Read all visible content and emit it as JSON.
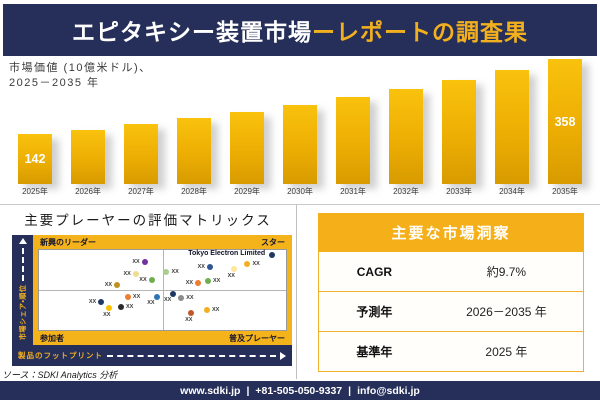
{
  "header": {
    "title_main": "エピタキシー装置市場",
    "title_accent": "ーレポートの調査果"
  },
  "bar_section": {
    "subtitle_line1": "市場価値 (10億米ドル)、",
    "subtitle_line2": "2025－2035 年"
  },
  "chart_data": [
    {
      "type": "bar",
      "title": "市場価値 (10億米ドル)、2025－2035 年",
      "categories": [
        "2025年",
        "2026年",
        "2027年",
        "2028年",
        "2029年",
        "2030年",
        "2031年",
        "2032年",
        "2033年",
        "2034年",
        "2035年"
      ],
      "values": [
        142,
        156,
        171,
        188,
        206,
        226,
        248,
        272,
        298,
        327,
        358
      ],
      "data_labels": [
        "142",
        "",
        "",
        "",
        "",
        "",
        "",
        "",
        "",
        "",
        "358"
      ],
      "ylim": [
        0,
        358
      ],
      "bar_color_top": "#F9C20D",
      "bar_color_bottom": "#D89B00",
      "grid": false,
      "legend": "none"
    },
    {
      "type": "scatter",
      "title": "主要プレーヤーの評価マトリックス",
      "xlabel": "製品のフットプリント",
      "ylabel": "市場シェア・順位",
      "quadrant_labels": {
        "top_left": "新興のリーダー",
        "top_right": "スター",
        "bottom_left": "参加者",
        "bottom_right": "普及プレーヤー"
      },
      "points": [
        {
          "x": 42.8,
          "y": 14.5,
          "c": "#7030A0",
          "label": "XX",
          "pos": "l"
        },
        {
          "x": 39.2,
          "y": 30.1,
          "c": "#EFDE8F",
          "label": "XX",
          "pos": "l"
        },
        {
          "x": 45.6,
          "y": 37.3,
          "c": "#6FAE4E",
          "label": "XX",
          "pos": "l"
        },
        {
          "x": 31.6,
          "y": 43.4,
          "c": "#BD9220",
          "label": "XX",
          "pos": "l"
        },
        {
          "x": 51.6,
          "y": 27.7,
          "c": "#A8CE8F",
          "label": "XX",
          "pos": "r"
        },
        {
          "x": 36.0,
          "y": 59.0,
          "c": "#ED7D31",
          "label": "XX",
          "pos": "r"
        },
        {
          "x": 47.6,
          "y": 59.0,
          "c": "#2E75B6",
          "label": "XX",
          "pos": "bl"
        },
        {
          "x": 25.2,
          "y": 65.1,
          "c": "#1F3864",
          "label": "XX",
          "pos": "l"
        },
        {
          "x": 33.2,
          "y": 71.1,
          "c": "#2b2b2b",
          "label": "XX",
          "pos": "r"
        },
        {
          "x": 28.4,
          "y": 72.3,
          "c": "#FFC000",
          "label": "XX",
          "pos": "b"
        },
        {
          "x": 94.4,
          "y": 6.0,
          "c": "#1F3864",
          "label": "Tokyo Electron Limited",
          "pos": "tel"
        },
        {
          "x": 84.4,
          "y": 16.9,
          "c": "#F2B01E",
          "label": "XX",
          "pos": "r"
        },
        {
          "x": 78.8,
          "y": 24.1,
          "c": "#FFE699",
          "label": "XX",
          "pos": "b"
        },
        {
          "x": 69.2,
          "y": 21.7,
          "c": "#2F5597",
          "label": "XX",
          "pos": "l"
        },
        {
          "x": 68.4,
          "y": 38.6,
          "c": "#6FAE4E",
          "label": "XX",
          "pos": "r"
        },
        {
          "x": 64.4,
          "y": 41.0,
          "c": "#ED7D31",
          "label": "XX",
          "pos": "l"
        },
        {
          "x": 54.4,
          "y": 55.4,
          "c": "#1F3864",
          "label": "XX",
          "pos": "bl"
        },
        {
          "x": 57.6,
          "y": 60.2,
          "c": "#8C8C8C",
          "label": "XX",
          "pos": "r"
        },
        {
          "x": 61.6,
          "y": 78.3,
          "c": "#C0572A",
          "label": "XX",
          "pos": "b"
        },
        {
          "x": 68.0,
          "y": 74.7,
          "c": "#F2B01E",
          "label": "XX",
          "pos": "r"
        }
      ]
    }
  ],
  "matrix": {
    "title": "主要プレーヤーの評価マトリックス",
    "y_axis_label": "市場シェア・順位",
    "x_axis_label": "製品のフットプリント",
    "quad_top_left": "新興のリーダー",
    "quad_top_right": "スター",
    "quad_bottom_left": "参加者",
    "quad_bottom_right": "普及プレーヤー",
    "source": "ソース：SDKI Analytics 分析"
  },
  "insights": {
    "title": "主要な市場洞察",
    "rows": [
      {
        "label": "CAGR",
        "value": "約9.7%"
      },
      {
        "label": "予測年",
        "value": "2026－2035 年"
      },
      {
        "label": "基準年",
        "value": "2025 年"
      }
    ]
  },
  "footer": {
    "website": "www.sdki.jp",
    "separator": "|",
    "phone": "+81-505-050-9337",
    "email": "info@sdki.jp"
  },
  "colors": {
    "navy": "#262F5A",
    "gold": "#F5AF19",
    "accent_text": "#F2B01E"
  }
}
